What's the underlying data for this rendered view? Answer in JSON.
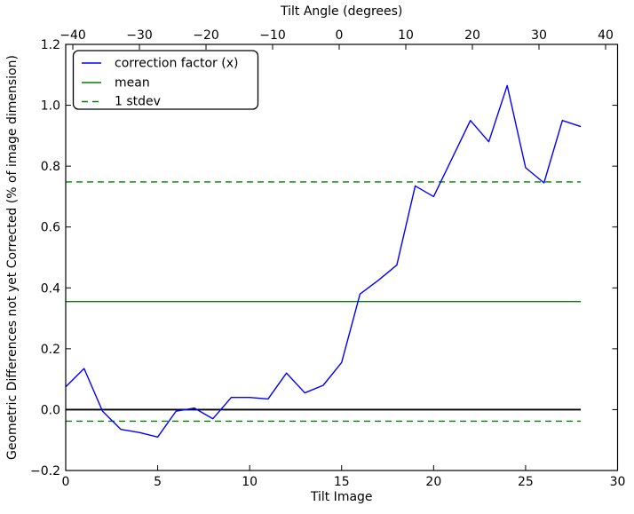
{
  "chart_data": {
    "type": "line",
    "top_axis": {
      "label": "Tilt Angle (degrees)",
      "min": -41.07,
      "max": 41.8,
      "ticks": [
        -40,
        -30,
        -20,
        -10,
        0,
        10,
        20,
        30,
        40
      ]
    },
    "x_axis": {
      "label": "Tilt Image",
      "min": 0,
      "max": 30,
      "ticks": [
        0,
        5,
        10,
        15,
        20,
        25,
        30
      ]
    },
    "y_axis": {
      "label": "Geometric Differences not yet Corrected (% of image dimension)",
      "min": -0.2,
      "max": 1.2,
      "ticks": [
        -0.2,
        0.0,
        0.2,
        0.4,
        0.6,
        0.8,
        1.0,
        1.2
      ]
    },
    "series": [
      {
        "name": "correction factor (x)",
        "color": "#0000ff",
        "style": "solid",
        "x": [
          0,
          1,
          2,
          3,
          4,
          5,
          6,
          7,
          8,
          9,
          10,
          11,
          12,
          13,
          14,
          15,
          16,
          17,
          18,
          19,
          20,
          21,
          22,
          23,
          24,
          25,
          26,
          27,
          28
        ],
        "y": [
          0.075,
          0.135,
          -0.005,
          -0.065,
          -0.075,
          -0.09,
          -0.005,
          0.005,
          -0.03,
          0.04,
          0.04,
          0.035,
          0.12,
          0.055,
          0.08,
          0.155,
          0.38,
          0.425,
          0.475,
          0.735,
          0.7,
          0.825,
          0.95,
          0.88,
          1.065,
          0.795,
          0.745,
          0.95,
          0.93
        ]
      }
    ],
    "reference_lines": [
      {
        "name": "zero-line",
        "color": "#000000",
        "style": "solid",
        "y": 0.0,
        "x_start": 0,
        "x_end": 28,
        "width": 1.8
      },
      {
        "name": "mean-line",
        "color": "#008000",
        "style": "solid",
        "y": 0.355,
        "x_start": 0,
        "x_end": 28,
        "width": 1.4
      },
      {
        "name": "stdev-upper-line",
        "color": "#008000",
        "style": "dashed",
        "y": 0.748,
        "x_start": 0,
        "x_end": 28,
        "width": 1.4
      },
      {
        "name": "stdev-lower-line",
        "color": "#008000",
        "style": "dashed",
        "y": -0.038,
        "x_start": 0,
        "x_end": 28,
        "width": 1.4
      }
    ],
    "legend": {
      "position": "upper left",
      "entries": [
        {
          "label": "correction factor (x)",
          "color": "#0000ff",
          "style": "solid"
        },
        {
          "label": "mean",
          "color": "#008000",
          "style": "solid"
        },
        {
          "label": "1 stdev",
          "color": "#008000",
          "style": "dashed"
        }
      ]
    },
    "grid": false,
    "stats": {
      "mean": 0.355,
      "stdev": 0.393
    }
  },
  "colors": {
    "background": "#ffffff",
    "axis": "#000000",
    "series_blue": "#0000ff",
    "reference_green": "#008000"
  }
}
